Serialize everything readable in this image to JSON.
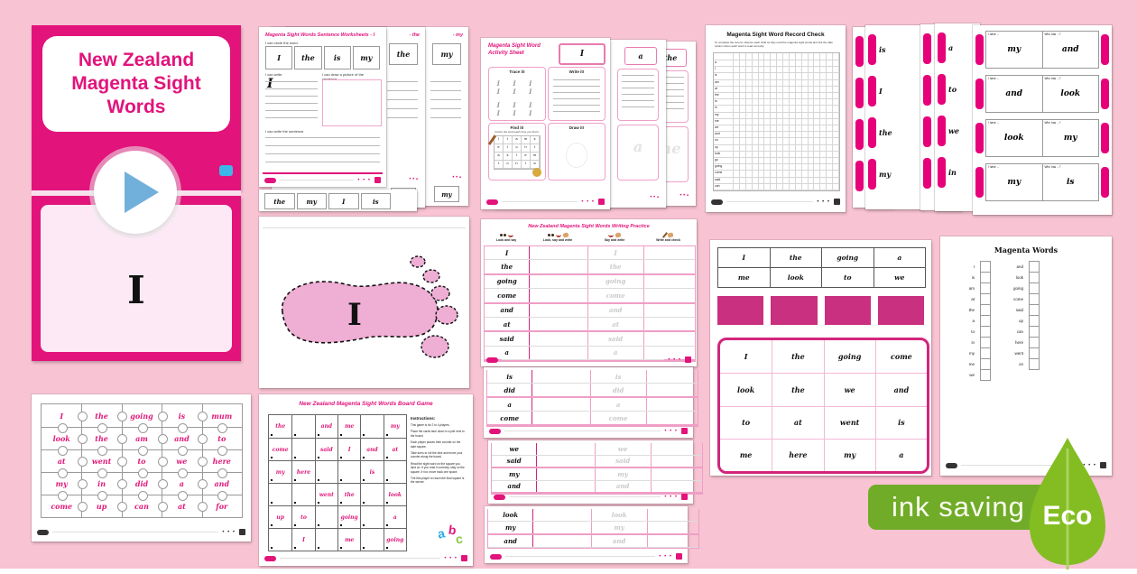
{
  "background_color": "#f8c3d3",
  "brand": {
    "magenta": "#e2137b",
    "pale_pink": "#fce9f5",
    "banner_green": "#71ac28",
    "leaf_green": "#84bd22",
    "play_blue": "#72b0dc"
  },
  "title_slide": {
    "line1": "New Zealand",
    "line2": "Magenta Sight Words"
  },
  "word_slide": {
    "word": "I"
  },
  "sentence_worksheet": {
    "title": "Magenta Sight Words Sentence Worksheets - I",
    "stack_fragments": [
      "- the",
      "- my"
    ],
    "circle_prompt": "I can circle the word.",
    "word_boxes": [
      "I",
      "the",
      "is",
      "my"
    ],
    "write_prompt": "I can write.",
    "write_example": "I",
    "draw_prompt": "I can draw a picture of the sentence.",
    "sentence_prompt": "I can write the sentence.",
    "next_page_words": [
      "the",
      "my",
      "I",
      "is"
    ]
  },
  "activity_sheet": {
    "title_line1": "Magenta Sight Word",
    "title_line2": "Activity Sheet",
    "focus_word": "I",
    "quadrants": {
      "trace": "Trace it!",
      "write": "Write it!",
      "find": "Find it!",
      "draw": "Draw it!"
    },
    "find_prompt": "Colour the word each time you find it.",
    "find_letters": [
      [
        "I",
        "t",
        "a",
        "m",
        "s"
      ],
      [
        "e",
        "I",
        "o",
        "h",
        "t"
      ],
      [
        "a",
        "s",
        "I",
        "e",
        "m"
      ],
      [
        "t",
        "o",
        "h",
        "I",
        "a"
      ]
    ],
    "stack_words": [
      "a",
      "the"
    ]
  },
  "record_check": {
    "title": "Magenta Sight Word Record Check",
    "instructions": "To complete the record, observe each child as they read the magenta sight words and tick the date column when each word is read correctly.",
    "words": [
      "a",
      "I",
      "is",
      "am",
      "at",
      "the",
      "to",
      "in",
      "my",
      "me",
      "we",
      "and",
      "on",
      "up",
      "look",
      "go",
      "going",
      "come",
      "said",
      "can"
    ]
  },
  "flashcards": {
    "left_header": "I have ...",
    "right_header": "Who has ...?",
    "cards": [
      {
        "left": "my",
        "right": "and"
      },
      {
        "left": "and",
        "right": "look"
      },
      {
        "left": "look",
        "right": "my"
      },
      {
        "left": "my",
        "right": "is"
      }
    ],
    "stack_words_1": [
      "is",
      "I",
      "the",
      "my"
    ],
    "stack_words_2": [
      "a",
      "to",
      "we",
      "in"
    ]
  },
  "footprint_page": {
    "word": "I"
  },
  "writing_practice": {
    "title": "New Zealand Magenta Sight Words Writing Practice",
    "columns": [
      "Look and say",
      "Look, say and write",
      "Say and write",
      "Write and check"
    ],
    "rows": [
      "I",
      "the",
      "going",
      "come",
      "and",
      "at",
      "said",
      "a"
    ],
    "extra_pages": [
      [
        "is",
        "did",
        "a",
        "come"
      ],
      [
        "we",
        "said",
        "my",
        "and"
      ],
      [
        "look",
        "my",
        "and"
      ]
    ]
  },
  "word_table": {
    "rows": [
      [
        "I",
        "the",
        "going",
        "a"
      ],
      [
        "me",
        "look",
        "to",
        "we"
      ]
    ]
  },
  "word_card_backs": 4,
  "bingo_board": {
    "rows": [
      [
        "I",
        "the",
        "going",
        "come"
      ],
      [
        "look",
        "the",
        "we",
        "and"
      ],
      [
        "to",
        "at",
        "went",
        "is"
      ],
      [
        "me",
        "here",
        "my",
        "a"
      ]
    ]
  },
  "checklist": {
    "title": "Magenta Words",
    "column1": [
      "I",
      "is",
      "am",
      "at",
      "the",
      "a",
      "to",
      "in",
      "my",
      "me",
      "we"
    ],
    "column2": [
      "and",
      "look",
      "going",
      "come",
      "said",
      "up",
      "can",
      "here",
      "went",
      "on"
    ]
  },
  "puzzle": {
    "rows": [
      [
        "I",
        "the",
        "going",
        "is",
        "mum"
      ],
      [
        "look",
        "the",
        "am",
        "and",
        "to"
      ],
      [
        "at",
        "went",
        "to",
        "we",
        "here"
      ],
      [
        "my",
        "in",
        "did",
        "a",
        "and"
      ],
      [
        "come",
        "up",
        "can",
        "at",
        "for"
      ]
    ]
  },
  "board_game": {
    "title": "New Zealand Magenta Sight Words Board Game",
    "instructions_title": "Instructions:",
    "instructions": [
      "This game is for 2 to 4 players.",
      "Place the cards face down in a pile next to the board.",
      "Each player places their counter on the start square.",
      "Take turns to roll the dice and move your counter along the board.",
      "Read the sight word on the square you land on. If you read it correctly, stay on the square. If not, move back one space.",
      "The first player to reach the final square is the winner."
    ],
    "cells": [
      [
        "the",
        "",
        "and",
        "me",
        "",
        "my"
      ],
      [
        "come",
        "",
        "said",
        "I",
        "and",
        "at"
      ],
      [
        "my",
        "here",
        "",
        "",
        "is",
        ""
      ],
      [
        "",
        "",
        "went",
        "the",
        "",
        "look"
      ],
      [
        "up",
        "to",
        "",
        "going",
        "",
        "a"
      ],
      [
        "",
        "I",
        "",
        "me",
        "",
        "going"
      ]
    ]
  },
  "eco_badge": {
    "label": "ink saving",
    "eco": "Eco"
  }
}
